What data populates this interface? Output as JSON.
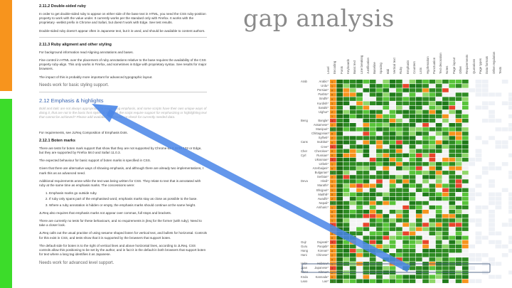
{
  "slide": {
    "title": "gap analysis",
    "colors": {
      "orange": "#f7941d",
      "green": "#3cdc2a",
      "arrow": "#4a86e8"
    }
  },
  "doc": {
    "s1_heading": "2.11.2 Double-sided ruby",
    "s1_p1": "In order to get double-sided ruby to appear on either side of the base text in HTML, you need the CSS ruby-position property to work with the value under. It currently works per the standard only with Firefox. It works with the proprietary -webkit prefix in Chrome and Safari, but doesn't work with Edge. See test results.",
    "s1_p2": "Double-sided ruby doesn't appear often in Japanese text, but it is used, and should be available to content authors.",
    "s2_heading": "2.11.3 Ruby aligment and other styling",
    "s2_p1": "For background information read Aligning annotations and bases.",
    "s2_p2": "Fine control in HTML over the placement of ruby annotations relative to the base requires the availability of the CSS property ruby-align. This only works in Firefox, and sometimes in Edge with proprietary syntax. See results for major browsers.",
    "s2_p3": "The impact of this is probably more important for advanced typographic layout.",
    "s2_note": "Needs work for basic styling support.",
    "s3_heading": "2.12 Emphasis & highlights",
    "s3_faint": "Bold and italic are not always appropriate for expressing emphasis, and some scripts have their own unique ways of doing it, that are not in the basic font styles at all. Does the script require support for emphasizing or highlighting text that cannot be achieved? Please add available information or check for currently needed data.",
    "s3_p1": "For requirements, see JLReq Composition of Emphasis Dots.",
    "s4_heading": "2.12.1 Boten marks",
    "s4_p1": "There are tests for boten mark support that show that they are not supported by Chrome 63.0.3239.132 or Edge, but they are supported by Firefox 58.0 and Safari 11.0.3.",
    "s4_p2": "The expected behaviour for basic support of boten marks is specified in CSS.",
    "s4_p3": "Given that there are alternative ways of showing emphasis, and although there are already two implementations, I mark this as an advanced need.",
    "s4_p4": "Additional requirements arose while the text was being written for CSS. They relate to text that is annotated with ruby at the same time as emphasis marks. The concessions were:",
    "s4_list": [
      "Emphasis marks go outside ruby.",
      "If ruby only spans part of the emphasised word, emphasis marks stay as close as possible to the base.",
      "Where a ruby annotation is hidden or empty, the emphasis marks should continue at the same height."
    ],
    "s4_p5": "JLReq also requires that emphasis marks not appear over commas, full stops and brackets.",
    "s4_p6": "There are currently no tests for these behaviours, and no requirements in jlreq for the former (with ruby). Need to take a closer look.",
    "s4_p7": "JLReq calls out the usual practise of using sesame shaped boten for vertical text, and bullets for horizontal. Controls for this exist in CSS, and tests show that it is supported by the browsers that support boten.",
    "s4_p8": "The default side for boten is to the right of vertical lines and above horizontal lines, according to JLReq. CSS controls allow this positioning to be set by the author, and in fact it is the default in both browsers that support boten for text where a lang tag identifies it as Japanese.",
    "s4_note": "Needs work for advanced level support."
  },
  "grid": {
    "headers": [
      "Level",
      "Encoding",
      "Fonts",
      "Keyboards",
      "Basic text",
      "Line breaking",
      "Justification",
      "Baseline",
      "Spacing",
      "Bidi",
      "Vertical text",
      "Ruby",
      "Emphasis",
      "Counters",
      "Lists",
      "Hyphenation",
      "Punctuation",
      "Text decoration",
      "Notes",
      "Page layout",
      "Other",
      "Requirements",
      "Quotations",
      "Page types",
      "Data formats",
      "Other regulation",
      "Tests"
    ],
    "scripts": [
      {
        "name": "Arab",
        "row": 0
      },
      {
        "name": "Beng",
        "row": 9
      },
      {
        "name": "Cans",
        "row": 14
      },
      {
        "name": "Cher",
        "row": 16
      },
      {
        "name": "Cyrl",
        "row": 17
      },
      {
        "name": "Deva",
        "row": 23
      },
      {
        "name": "Gujr",
        "row": 37
      },
      {
        "name": "Guru",
        "row": 38
      },
      {
        "name": "Hang",
        "row": 39
      },
      {
        "name": "Hani",
        "row": 40
      },
      {
        "name": "Hebr",
        "row": 42
      },
      {
        "name": "Jpan",
        "row": 43
      },
      {
        "name": "Khmr",
        "row": 44
      },
      {
        "name": "Knda",
        "row": 45
      },
      {
        "name": "Laoo",
        "row": 46
      }
    ],
    "languages": [
      "Arabic*",
      "Urdu*",
      "Persian*",
      "Pashto*",
      "Sindhi*",
      "Kurdish*",
      "Saraiki*",
      "Uighur*",
      "",
      "Bangla*",
      "Assamese*",
      "Manipuri*",
      "Chittagonian*",
      "Sylheti*",
      "Inuktitut*",
      "Cree*",
      "Cherokee*",
      "Russian*",
      "Ukrainian*",
      "Uzbek*",
      "Azerbaijani*",
      "Bulgarian*",
      "Serbian*",
      "Hindi*",
      "Marathi*",
      "Bhojpuri*",
      "Maithili*",
      "Awadhi*",
      "Nepali*",
      "Amharic*",
      "",
      "",
      "",
      "",
      "",
      "",
      "",
      "Gujarati*",
      "Panjabi*",
      "Korean*",
      "Chinese*",
      "",
      "Hebrew*",
      "Japanese*",
      "Khmer*",
      "Kannada*",
      "Lao*"
    ],
    "levels": [
      "0",
      "1",
      "2",
      "3"
    ]
  }
}
